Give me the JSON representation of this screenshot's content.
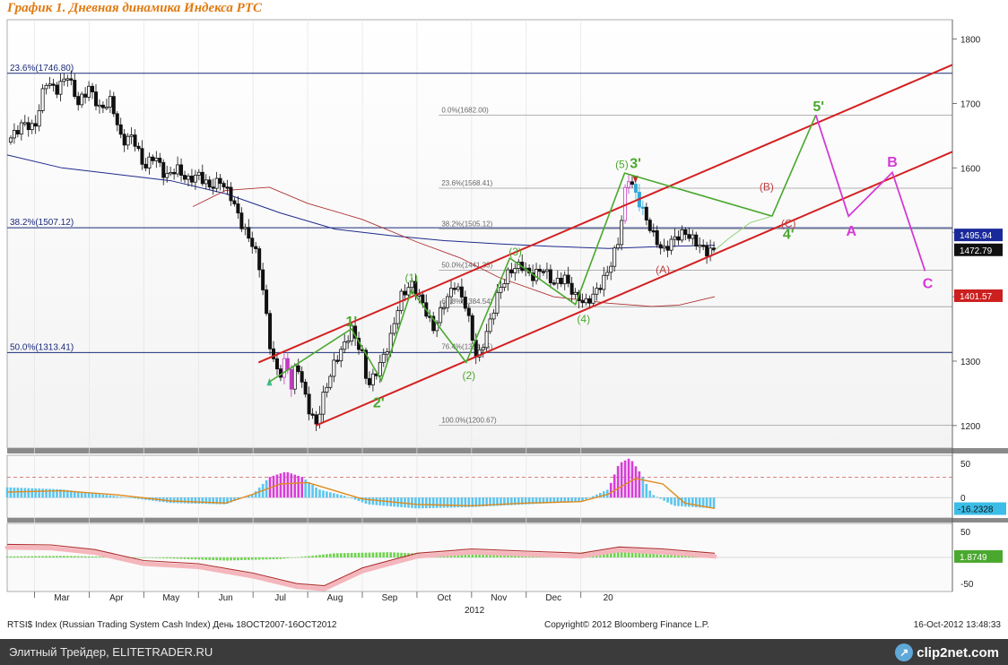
{
  "title": "График 1.   Дневная динамика Индекса РТС",
  "footer": {
    "left": "RTSI$ Index (Russian Trading System Cash Index) День 18OCT2007-16OCT2012",
    "center": "Copyright© 2012 Bloomberg Finance L.P.",
    "right": "16-Oct-2012 13:48:33",
    "year": "2012",
    "source": "Элитный Трейдер, ELITETRADER.RU",
    "watermark": "clip2net.com",
    "watermark_icon": "clip2net-logo-icon"
  },
  "colors": {
    "background": "#ffffff",
    "candle": "#111111",
    "ma_blue": "#1f2a8c",
    "ma_red": "#b03030",
    "channel": "#d42020",
    "green_wave": "#4aa82e",
    "magenta": "#d43ad4",
    "title": "#e07a10"
  },
  "chart_data": [
    {
      "type": "candlestick",
      "panel": "price",
      "x_ticks": [
        "Mar",
        "Apr",
        "May",
        "Jun",
        "Jul",
        "Aug",
        "Sep",
        "Oct",
        "Nov",
        "Dec",
        "20"
      ],
      "ylim": [
        1165,
        1830
      ],
      "y_ticks": [
        1200,
        1300,
        1400,
        1500,
        1600,
        1700,
        1800
      ],
      "price_tags": [
        {
          "value": 1495.94,
          "text": "1495.94",
          "color": "#1a2a9a"
        },
        {
          "value": 1472.79,
          "text": "1472.79",
          "color": "#111111"
        },
        {
          "value": 1401.57,
          "text": "1401.57",
          "color": "#cc1f1f"
        }
      ],
      "fib_levels": [
        {
          "value": 1746.8,
          "text": "23.6%(1746.80)",
          "major": true
        },
        {
          "value": 1682.0,
          "text": "0.0%(1682.00)",
          "major": false
        },
        {
          "value": 1568.41,
          "text": "23.6%(1568.41)",
          "major": false
        },
        {
          "value": 1507.12,
          "text": "38.2%(1507.12)",
          "major": true
        },
        {
          "value": 1505.12,
          "text": "38.2%(1505.12)",
          "major": false
        },
        {
          "value": 1441.33,
          "text": "50.0%(1441.33)",
          "major": false
        },
        {
          "value": 1384.54,
          "text": "61.8%(1384.54)",
          "major": false
        },
        {
          "value": 1313.41,
          "text": "50.0%(1313.41)",
          "major": true
        },
        {
          "value": 1314.25,
          "text": "76.4%(1314.25)",
          "major": false
        },
        {
          "value": 1200.67,
          "text": "100.0%(1200.67)",
          "major": false
        }
      ],
      "close_path": [
        [
          0,
          1640
        ],
        [
          0.3,
          1670
        ],
        [
          0.5,
          1660
        ],
        [
          0.7,
          1735
        ],
        [
          0.9,
          1720
        ],
        [
          1.1,
          1745
        ],
        [
          1.3,
          1700
        ],
        [
          1.5,
          1725
        ],
        [
          1.7,
          1690
        ],
        [
          1.9,
          1705
        ],
        [
          2.1,
          1640
        ],
        [
          2.3,
          1650
        ],
        [
          2.5,
          1600
        ],
        [
          2.7,
          1620
        ],
        [
          2.9,
          1585
        ],
        [
          3.1,
          1600
        ],
        [
          3.3,
          1580
        ],
        [
          3.5,
          1590
        ],
        [
          3.7,
          1570
        ],
        [
          3.9,
          1580
        ],
        [
          4.1,
          1555
        ],
        [
          4.3,
          1510
        ],
        [
          4.5,
          1480
        ],
        [
          4.6,
          1455
        ],
        [
          4.7,
          1400
        ],
        [
          4.8,
          1330
        ],
        [
          4.9,
          1290
        ],
        [
          5.0,
          1280
        ],
        [
          5.1,
          1305
        ],
        [
          5.2,
          1260
        ],
        [
          5.3,
          1300
        ],
        [
          5.5,
          1230
        ],
        [
          5.65,
          1200
        ],
        [
          5.8,
          1250
        ],
        [
          6.0,
          1300
        ],
        [
          6.2,
          1330
        ],
        [
          6.3,
          1350
        ],
        [
          6.4,
          1330
        ],
        [
          6.5,
          1310
        ],
        [
          6.6,
          1260
        ],
        [
          6.8,
          1290
        ],
        [
          7.0,
          1330
        ],
        [
          7.2,
          1400
        ],
        [
          7.4,
          1420
        ],
        [
          7.6,
          1390
        ],
        [
          7.8,
          1350
        ],
        [
          8.0,
          1390
        ],
        [
          8.2,
          1420
        ],
        [
          8.4,
          1385
        ],
        [
          8.6,
          1300
        ],
        [
          8.8,
          1350
        ],
        [
          9.0,
          1410
        ],
        [
          9.2,
          1440
        ],
        [
          9.4,
          1450
        ],
        [
          9.6,
          1430
        ],
        [
          9.8,
          1445
        ],
        [
          10.0,
          1420
        ],
        [
          10.2,
          1430
        ],
        [
          10.4,
          1400
        ],
        [
          10.6,
          1390
        ],
        [
          10.8,
          1410
        ],
        [
          11.0,
          1440
        ],
        [
          11.2,
          1490
        ],
        [
          11.35,
          1590
        ],
        [
          11.45,
          1570
        ],
        [
          11.6,
          1540
        ],
        [
          11.8,
          1500
        ],
        [
          12.0,
          1470
        ],
        [
          12.2,
          1490
        ],
        [
          12.4,
          1500
        ],
        [
          12.6,
          1485
        ],
        [
          12.8,
          1470
        ],
        [
          12.95,
          1472
        ]
      ],
      "ma_blue": [
        [
          0,
          1620
        ],
        [
          1,
          1600
        ],
        [
          2,
          1590
        ],
        [
          3,
          1580
        ],
        [
          4,
          1560
        ],
        [
          5,
          1530
        ],
        [
          6,
          1505
        ],
        [
          7,
          1495
        ],
        [
          8,
          1487
        ],
        [
          9,
          1482
        ],
        [
          10,
          1478
        ],
        [
          11,
          1475
        ],
        [
          12,
          1478
        ],
        [
          12.95,
          1480
        ]
      ],
      "ma_red": [
        [
          3.4,
          1540
        ],
        [
          4,
          1565
        ],
        [
          4.8,
          1570
        ],
        [
          5.5,
          1545
        ],
        [
          6.5,
          1520
        ],
        [
          7.5,
          1485
        ],
        [
          8.3,
          1460
        ],
        [
          9,
          1430
        ],
        [
          10,
          1400
        ],
        [
          11,
          1390
        ],
        [
          11.8,
          1385
        ],
        [
          12.3,
          1387
        ],
        [
          12.95,
          1400
        ]
      ],
      "channel_lines": [
        {
          "from": [
            4.6,
            1298
          ],
          "to": [
            17.3,
            1760
          ]
        },
        {
          "from": [
            5.65,
            1200
          ],
          "to": [
            17.3,
            1625
          ]
        }
      ],
      "wave_green": [
        [
          4.8,
          1268
        ],
        [
          6.3,
          1350
        ],
        [
          6.85,
          1270
        ],
        [
          7.4,
          1410
        ],
        [
          8.4,
          1298
        ],
        [
          9.2,
          1460
        ],
        [
          10.4,
          1388
        ],
        [
          11.3,
          1592
        ],
        [
          14.0,
          1525
        ],
        [
          14.8,
          1682
        ]
      ],
      "wave_magenta": [
        [
          14.8,
          1682
        ],
        [
          15.4,
          1525
        ],
        [
          16.2,
          1593
        ],
        [
          16.8,
          1440
        ]
      ],
      "wave_labels": [
        {
          "text": "1'",
          "x": 6.3,
          "y": 1354,
          "color": "#4aa82e",
          "size": 16
        },
        {
          "text": "2'",
          "x": 6.8,
          "y": 1228,
          "color": "#4aa82e",
          "size": 16
        },
        {
          "text": "3'",
          "x": 11.5,
          "y": 1600,
          "color": "#4aa82e",
          "size": 16
        },
        {
          "text": "4'",
          "x": 14.3,
          "y": 1490,
          "color": "#4aa82e",
          "size": 16
        },
        {
          "text": "5'",
          "x": 14.85,
          "y": 1688,
          "color": "#4aa82e",
          "size": 16
        },
        {
          "text": "(1)",
          "x": 7.4,
          "y": 1424,
          "color": "#4aa82e",
          "size": 12
        },
        {
          "text": "(2)",
          "x": 8.45,
          "y": 1272,
          "color": "#4aa82e",
          "size": 12
        },
        {
          "text": "(3)",
          "x": 9.3,
          "y": 1464,
          "color": "#4aa82e",
          "size": 12
        },
        {
          "text": "(4)",
          "x": 10.55,
          "y": 1360,
          "color": "#4aa82e",
          "size": 12
        },
        {
          "text": "(5)",
          "x": 11.25,
          "y": 1600,
          "color": "#4aa82e",
          "size": 12
        },
        {
          "text": "(A)",
          "x": 12.0,
          "y": 1436,
          "color": "#c04040",
          "size": 12
        },
        {
          "text": "(B)",
          "x": 13.9,
          "y": 1565,
          "color": "#c04040",
          "size": 12
        },
        {
          "text": "(C)",
          "x": 14.3,
          "y": 1508,
          "color": "#c04040",
          "size": 12
        },
        {
          "text": "A",
          "x": 15.45,
          "y": 1495,
          "color": "#d43ad4",
          "size": 16
        },
        {
          "text": "B",
          "x": 16.2,
          "y": 1602,
          "color": "#d43ad4",
          "size": 16
        },
        {
          "text": "C",
          "x": 16.85,
          "y": 1413,
          "color": "#d43ad4",
          "size": 16
        }
      ]
    },
    {
      "type": "histogram",
      "panel": "oscillator-1",
      "ylim": [
        -30,
        62
      ],
      "y_ticks": [
        50,
        0
      ],
      "value_tag": {
        "value": -16.2328,
        "text": "-16.2328",
        "color": "#3bbde8"
      },
      "dashed_level": 30,
      "histogram": [
        [
          0,
          15
        ],
        [
          1,
          12
        ],
        [
          2,
          2
        ],
        [
          3,
          -8
        ],
        [
          4,
          -10
        ],
        [
          4.5,
          5
        ],
        [
          4.8,
          30
        ],
        [
          5.1,
          38
        ],
        [
          5.4,
          30
        ],
        [
          5.7,
          12
        ],
        [
          6.2,
          2
        ],
        [
          6.6,
          -10
        ],
        [
          7.5,
          -16
        ],
        [
          8.5,
          -14
        ],
        [
          9.5,
          -10
        ],
        [
          10.5,
          -6
        ],
        [
          11.0,
          12
        ],
        [
          11.2,
          50
        ],
        [
          11.4,
          58
        ],
        [
          11.6,
          35
        ],
        [
          11.8,
          5
        ],
        [
          12.2,
          -12
        ],
        [
          12.95,
          -16
        ]
      ],
      "signal": [
        [
          0,
          8
        ],
        [
          1,
          10
        ],
        [
          2,
          4
        ],
        [
          3,
          -5
        ],
        [
          4,
          -8
        ],
        [
          4.5,
          5
        ],
        [
          5.0,
          20
        ],
        [
          5.5,
          22
        ],
        [
          6.0,
          10
        ],
        [
          6.5,
          -2
        ],
        [
          7.5,
          -10
        ],
        [
          8.5,
          -12
        ],
        [
          9.5,
          -8
        ],
        [
          10.5,
          -6
        ],
        [
          11.0,
          5
        ],
        [
          11.5,
          28
        ],
        [
          12.0,
          20
        ],
        [
          12.4,
          -8
        ],
        [
          12.95,
          -16
        ]
      ],
      "highlighted_range": [
        [
          4.8,
          5.4
        ],
        [
          11.0,
          11.6
        ]
      ]
    },
    {
      "type": "histogram",
      "panel": "oscillator-2",
      "ylim": [
        -65,
        65
      ],
      "y_ticks": [
        50,
        0,
        -50
      ],
      "value_tag": {
        "value": 1.8749,
        "text": "1.8749",
        "color": "#4aa82e"
      },
      "histogram": [
        [
          0,
          2
        ],
        [
          1,
          3
        ],
        [
          2,
          1
        ],
        [
          3,
          -2
        ],
        [
          4,
          -6
        ],
        [
          5,
          -3
        ],
        [
          6,
          8
        ],
        [
          7,
          10
        ],
        [
          8,
          5
        ],
        [
          9,
          6
        ],
        [
          10,
          3
        ],
        [
          11,
          12
        ],
        [
          11.5,
          10
        ],
        [
          12,
          5
        ],
        [
          12.95,
          3
        ]
      ],
      "signal": [
        [
          0,
          25
        ],
        [
          0.8,
          24
        ],
        [
          1.6,
          15
        ],
        [
          2.5,
          -6
        ],
        [
          3.5,
          -12
        ],
        [
          4.5,
          -30
        ],
        [
          5.3,
          -50
        ],
        [
          5.8,
          -54
        ],
        [
          6.5,
          -20
        ],
        [
          7.5,
          8
        ],
        [
          8.5,
          16
        ],
        [
          9.5,
          12
        ],
        [
          10.5,
          8
        ],
        [
          11.2,
          20
        ],
        [
          12,
          16
        ],
        [
          12.95,
          8
        ]
      ]
    }
  ]
}
